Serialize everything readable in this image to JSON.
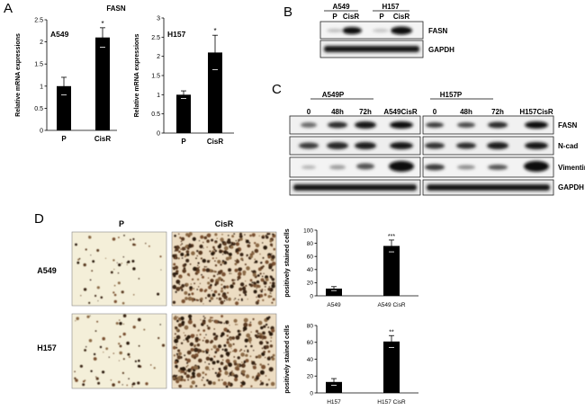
{
  "panel_labels": {
    "a": "A",
    "b": "B",
    "c": "C",
    "d": "D"
  },
  "panel_a": {
    "title": "FASN",
    "ylabel": "Relative mRNA expressions",
    "colors": {
      "bar": "#000000",
      "axis": "#000000"
    }
  },
  "panel_b": {
    "cell_lines": [
      "A549",
      "H157"
    ],
    "lanes": [
      "P",
      "CisR",
      "P",
      "CisR"
    ],
    "rows": [
      "FASN",
      "GAPDH"
    ]
  },
  "panel_c": {
    "groups": [
      {
        "name": "A549P",
        "lanes": [
          "0",
          "48h",
          "72h"
        ],
        "extra": "A549CisR"
      },
      {
        "name": "H157P",
        "lanes": [
          "0",
          "48h",
          "72h"
        ],
        "extra": "H157CisR"
      }
    ],
    "rows": [
      "FASN",
      "N-cad",
      "Vimentin",
      "GAPDH"
    ]
  },
  "panel_d": {
    "columns": [
      "P",
      "CisR"
    ],
    "rows": [
      "A549",
      "H157"
    ],
    "ylabel": "positively stained cells"
  },
  "chart_data": [
    {
      "type": "bar",
      "panel": "A",
      "title": "A549",
      "categories": [
        "P",
        "CisR"
      ],
      "values": [
        1.0,
        2.1
      ],
      "errors": [
        0.2,
        0.22
      ],
      "significance": [
        "",
        "*"
      ],
      "ylabel": "Relative mRNA expressions",
      "ylim": [
        0,
        2.5
      ],
      "yticks": [
        "0",
        "0.5",
        "1",
        "1.5",
        "2",
        "2.5"
      ]
    },
    {
      "type": "bar",
      "panel": "A",
      "title": "H157",
      "categories": [
        "P",
        "CisR"
      ],
      "values": [
        1.0,
        2.1
      ],
      "errors": [
        0.1,
        0.45
      ],
      "significance": [
        "",
        "*"
      ],
      "ylabel": "Relative mRNA expressions",
      "ylim": [
        0,
        3
      ],
      "yticks": [
        "0",
        "0.5",
        "1",
        "1.5",
        "2",
        "2.5",
        "3"
      ]
    },
    {
      "type": "bar",
      "panel": "D",
      "categories": [
        "A549",
        "A549 CisR"
      ],
      "values": [
        11,
        76
      ],
      "errors": [
        3,
        9
      ],
      "significance": [
        "",
        "***"
      ],
      "ylabel": "positively stained cells",
      "ylim": [
        0,
        100
      ],
      "yticks": [
        "0",
        "20",
        "40",
        "60",
        "80",
        "100"
      ]
    },
    {
      "type": "bar",
      "panel": "D",
      "categories": [
        "H157",
        "H157 CisR"
      ],
      "values": [
        13,
        61
      ],
      "errors": [
        4,
        7
      ],
      "significance": [
        "",
        "**"
      ],
      "ylabel": "positively stained cells",
      "ylim": [
        0,
        80
      ],
      "yticks": [
        "0",
        "20",
        "40",
        "60",
        "80"
      ]
    }
  ]
}
